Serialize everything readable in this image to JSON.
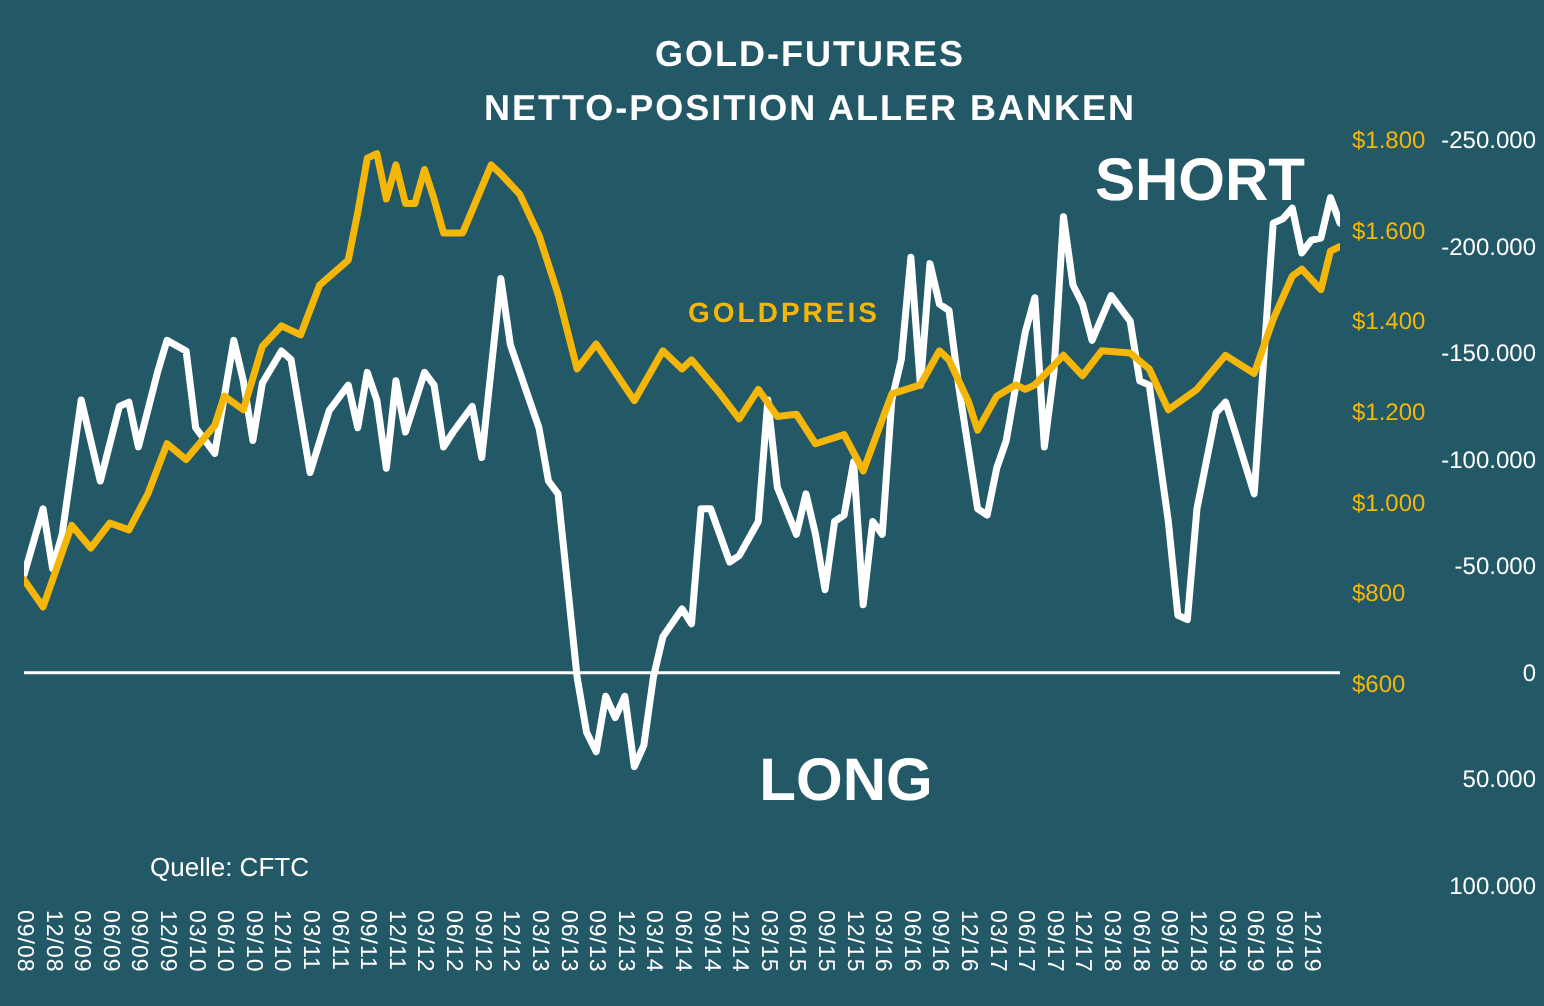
{
  "chart_data": {
    "type": "line",
    "title": "GOLD-FUTURES",
    "subtitle": "NETTO-POSITION ALLER BANKEN",
    "annotations": [
      "SHORT",
      "LONG",
      "Quelle: CFTC"
    ],
    "xlim": [
      "2008-09",
      "2020-03"
    ],
    "xticks": [
      {
        "value": "2008-09",
        "label": "09/08"
      },
      {
        "value": "2008-12",
        "label": "12/08"
      },
      {
        "value": "2009-03",
        "label": "03/09"
      },
      {
        "value": "2009-06",
        "label": "06/09"
      },
      {
        "value": "2009-09",
        "label": "09/09"
      },
      {
        "value": "2009-12",
        "label": "12/09"
      },
      {
        "value": "2010-03",
        "label": "03/10"
      },
      {
        "value": "2010-06",
        "label": "06/10"
      },
      {
        "value": "2010-09",
        "label": "09/10"
      },
      {
        "value": "2010-12",
        "label": "12/10"
      },
      {
        "value": "2011-03",
        "label": "03/11"
      },
      {
        "value": "2011-06",
        "label": "06/11"
      },
      {
        "value": "2011-09",
        "label": "09/11"
      },
      {
        "value": "2011-12",
        "label": "12/11"
      },
      {
        "value": "2012-03",
        "label": "03/12"
      },
      {
        "value": "2012-06",
        "label": "06/12"
      },
      {
        "value": "2012-09",
        "label": "09/12"
      },
      {
        "value": "2012-12",
        "label": "12/12"
      },
      {
        "value": "2013-03",
        "label": "03/13"
      },
      {
        "value": "2013-06",
        "label": "06/13"
      },
      {
        "value": "2013-09",
        "label": "09/13"
      },
      {
        "value": "2013-12",
        "label": "12/13"
      },
      {
        "value": "2014-03",
        "label": "03/14"
      },
      {
        "value": "2014-06",
        "label": "06/14"
      },
      {
        "value": "2014-09",
        "label": "09/14"
      },
      {
        "value": "2014-12",
        "label": "12/14"
      },
      {
        "value": "2015-03",
        "label": "03/15"
      },
      {
        "value": "2015-06",
        "label": "06/15"
      },
      {
        "value": "2015-09",
        "label": "09/15"
      },
      {
        "value": "2015-12",
        "label": "12/15"
      },
      {
        "value": "2016-03",
        "label": "03/16"
      },
      {
        "value": "2016-06",
        "label": "06/16"
      },
      {
        "value": "2016-09",
        "label": "09/16"
      },
      {
        "value": "2016-12",
        "label": "12/16"
      },
      {
        "value": "2017-03",
        "label": "03/17"
      },
      {
        "value": "2017-06",
        "label": "06/17"
      },
      {
        "value": "2017-09",
        "label": "09/17"
      },
      {
        "value": "2017-12",
        "label": "12/17"
      },
      {
        "value": "2018-03",
        "label": "03/18"
      },
      {
        "value": "2018-06",
        "label": "06/18"
      },
      {
        "value": "2018-09",
        "label": "09/18"
      },
      {
        "value": "2018-12",
        "label": "12/18"
      },
      {
        "value": "2019-03",
        "label": "03/19"
      },
      {
        "value": "2019-06",
        "label": "06/19"
      },
      {
        "value": "2019-09",
        "label": "09/19"
      },
      {
        "value": "2019-12",
        "label": "12/19"
      }
    ],
    "ylim": [
      100000,
      -250000
    ],
    "yticks": [
      {
        "value": -250000,
        "label": "-250.000"
      },
      {
        "value": -200000,
        "label": "-200.000"
      },
      {
        "value": -150000,
        "label": "-150.000"
      },
      {
        "value": -100000,
        "label": "-100.000"
      },
      {
        "value": -50000,
        "label": "-50.000"
      },
      0,
      {
        "value": 50000,
        "label": "50.000"
      },
      {
        "value": 100000,
        "label": "100.000"
      }
    ],
    "y2lim": [
      600,
      1800
    ],
    "y2ticks": [
      {
        "value": 600,
        "label": "$600"
      },
      {
        "value": 800,
        "label": "$800"
      },
      {
        "value": 1000,
        "label": "$1.000"
      },
      {
        "value": 1200,
        "label": "$1.200"
      },
      {
        "value": 1400,
        "label": "$1.400"
      },
      {
        "value": 1600,
        "label": "$1.600"
      },
      {
        "value": 1800,
        "label": "$1.800"
      }
    ],
    "ref_lines": [
      {
        "axis": "y",
        "value": 0,
        "color": "#ffffff"
      }
    ],
    "series": [
      {
        "color": "#ffffff",
        "x": [
          "2008-09",
          "2008-11",
          "2008-12",
          "2009-01",
          "2009-03",
          "2009-05",
          "2009-07",
          "2009-08",
          "2009-09",
          "2009-11",
          "2009-12",
          "2010-02",
          "2010-03",
          "2010-05",
          "2010-07",
          "2010-08",
          "2010-09",
          "2010-10",
          "2010-12",
          "2011-01",
          "2011-03",
          "2011-05",
          "2011-07",
          "2011-08",
          "2011-09",
          "2011-10",
          "2011-11",
          "2011-12",
          "2012-01",
          "2012-03",
          "2012-04",
          "2012-05",
          "2012-06",
          "2012-08",
          "2012-09",
          "2012-11",
          "2012-12",
          "2013-02",
          "2013-03",
          "2013-04",
          "2013-05",
          "2013-07",
          "2013-08",
          "2013-09",
          "2013-10",
          "2013-11",
          "2013-12",
          "2014-01",
          "2014-02",
          "2014-03",
          "2014-04",
          "2014-06",
          "2014-07",
          "2014-08",
          "2014-09",
          "2014-11",
          "2014-12",
          "2015-02",
          "2015-03",
          "2015-04",
          "2015-06",
          "2015-07",
          "2015-08",
          "2015-09",
          "2015-10",
          "2015-11",
          "2015-12",
          "2016-01",
          "2016-02",
          "2016-03",
          "2016-04",
          "2016-05",
          "2016-06",
          "2016-07",
          "2016-08",
          "2016-09",
          "2016-10",
          "2016-11",
          "2017-01",
          "2017-02",
          "2017-03",
          "2017-04",
          "2017-06",
          "2017-07",
          "2017-08",
          "2017-09",
          "2017-10",
          "2017-11",
          "2017-12",
          "2018-01",
          "2018-03",
          "2018-05",
          "2018-06",
          "2018-07",
          "2018-09",
          "2018-10",
          "2018-11",
          "2018-12",
          "2019-02",
          "2019-03",
          "2019-04",
          "2019-06",
          "2019-07",
          "2019-08",
          "2019-09",
          "2019-10",
          "2019-11",
          "2019-12",
          "2020-01",
          "2020-02",
          "2020-03"
        ],
        "values": [
          -46000,
          -77000,
          -49000,
          -65000,
          -128000,
          -90000,
          -125000,
          -127000,
          -106000,
          -141000,
          -156000,
          -151000,
          -115000,
          -103000,
          -156000,
          -137000,
          -109000,
          -136000,
          -151000,
          -147000,
          -94000,
          -123000,
          -135000,
          -115000,
          -141000,
          -128000,
          -96000,
          -137000,
          -113000,
          -141000,
          -135000,
          -106000,
          -113000,
          -125000,
          -101000,
          -185000,
          -154000,
          -128000,
          -115000,
          -90000,
          -84000,
          2000,
          28000,
          37000,
          11000,
          21000,
          11000,
          44000,
          34000,
          2000,
          -17000,
          -30000,
          -23000,
          -77000,
          -77000,
          -52000,
          -55000,
          -71000,
          -128000,
          -87000,
          -65000,
          -84000,
          -65000,
          -39000,
          -71000,
          -74000,
          -99000,
          -32000,
          -71000,
          -65000,
          -128000,
          -147000,
          -195000,
          -135000,
          -192000,
          -173000,
          -170000,
          -135000,
          -77000,
          -74000,
          -96000,
          -109000,
          -160000,
          -176000,
          -106000,
          -141000,
          -214000,
          -182000,
          -173000,
          -156000,
          -177000,
          -165000,
          -137000,
          -135000,
          -71000,
          -27000,
          -25000,
          -77000,
          -122000,
          -127000,
          -113000,
          -84000,
          -147000,
          -211000,
          -213000,
          -218000,
          -197000,
          -203000,
          -204000,
          -223000,
          -211000
        ]
      },
      {
        "name": "GOLDPREIS",
        "axis": "y2",
        "color": "#f5b60a",
        "x": [
          "2008-09",
          "2008-11",
          "2009-02",
          "2009-04",
          "2009-06",
          "2009-08",
          "2009-10",
          "2009-12",
          "2010-02",
          "2010-05",
          "2010-06",
          "2010-08",
          "2010-10",
          "2010-12",
          "2011-02",
          "2011-04",
          "2011-07",
          "2011-08",
          "2011-09",
          "2011-10",
          "2011-11",
          "2011-12",
          "2012-01",
          "2012-02",
          "2012-03",
          "2012-04",
          "2012-05",
          "2012-07",
          "2012-10",
          "2012-11",
          "2013-01",
          "2013-03",
          "2013-05",
          "2013-07",
          "2013-09",
          "2014-01",
          "2014-04",
          "2014-06",
          "2014-07",
          "2014-10",
          "2014-12",
          "2015-02",
          "2015-04",
          "2015-06",
          "2015-08",
          "2015-11",
          "2016-01",
          "2016-04",
          "2016-07",
          "2016-09",
          "2016-10",
          "2016-12",
          "2017-01",
          "2017-03",
          "2017-05",
          "2017-06",
          "2017-07",
          "2017-10",
          "2017-12",
          "2018-02",
          "2018-05",
          "2018-07",
          "2018-09",
          "2018-12",
          "2019-03",
          "2019-06",
          "2019-08",
          "2019-10",
          "2019-11",
          "2020-01",
          "2020-02",
          "2020-03"
        ],
        "values": [
          830,
          770,
          950,
          900,
          955,
          940,
          1020,
          1130,
          1095,
          1170,
          1235,
          1205,
          1345,
          1390,
          1370,
          1480,
          1535,
          1640,
          1760,
          1770,
          1670,
          1745,
          1660,
          1660,
          1735,
          1670,
          1595,
          1595,
          1745,
          1725,
          1680,
          1590,
          1460,
          1295,
          1350,
          1225,
          1335,
          1295,
          1315,
          1240,
          1185,
          1250,
          1190,
          1195,
          1130,
          1150,
          1070,
          1240,
          1260,
          1335,
          1315,
          1225,
          1160,
          1235,
          1260,
          1250,
          1260,
          1325,
          1280,
          1335,
          1330,
          1295,
          1205,
          1250,
          1325,
          1285,
          1405,
          1500,
          1515,
          1470,
          1555,
          1565
        ]
      }
    ]
  }
}
